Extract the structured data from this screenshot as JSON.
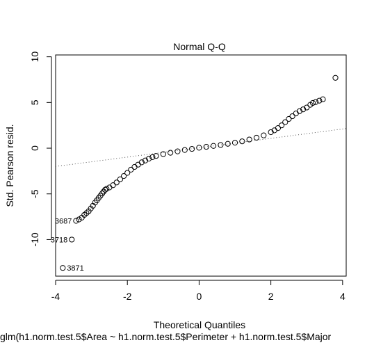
{
  "chart_data": {
    "type": "scatter",
    "title": "Normal Q-Q",
    "xlabel": "Theoretical Quantiles",
    "ylabel": "Std. Pearson resid.",
    "subtitle": "glm(h1.norm.test.5$Area ~ h1.norm.test.5$Perimeter + h1.norm.test.5$Major",
    "xlim": [
      -4.0,
      4.1
    ],
    "ylim": [
      -14.0,
      10.2
    ],
    "x_ticks": [
      -4,
      -2,
      0,
      2,
      4
    ],
    "y_ticks": [
      -10,
      -5,
      0,
      5,
      10
    ],
    "grid": false,
    "reference_line": {
      "style": "dotted",
      "x": [
        -4.0,
        4.1
      ],
      "y": [
        -2.0,
        2.15
      ]
    },
    "series": [
      {
        "marker": "open-circle",
        "points": [
          [
            -3.8,
            -13.1
          ],
          [
            -3.55,
            -10.0
          ],
          [
            -3.43,
            -7.95
          ],
          [
            -3.35,
            -7.8
          ],
          [
            -3.27,
            -7.6
          ],
          [
            -3.2,
            -7.3
          ],
          [
            -3.14,
            -7.1
          ],
          [
            -3.08,
            -6.9
          ],
          [
            -3.02,
            -6.6
          ],
          [
            -2.96,
            -6.3
          ],
          [
            -2.9,
            -5.95
          ],
          [
            -2.85,
            -5.7
          ],
          [
            -2.8,
            -5.45
          ],
          [
            -2.75,
            -5.2
          ],
          [
            -2.7,
            -4.95
          ],
          [
            -2.66,
            -4.75
          ],
          [
            -2.62,
            -4.55
          ],
          [
            -2.58,
            -4.45
          ],
          [
            -2.5,
            -4.3
          ],
          [
            -2.4,
            -4.05
          ],
          [
            -2.3,
            -3.75
          ],
          [
            -2.2,
            -3.4
          ],
          [
            -2.1,
            -3.05
          ],
          [
            -2.0,
            -2.7
          ],
          [
            -1.9,
            -2.35
          ],
          [
            -1.8,
            -2.05
          ],
          [
            -1.7,
            -1.8
          ],
          [
            -1.6,
            -1.55
          ],
          [
            -1.5,
            -1.35
          ],
          [
            -1.4,
            -1.15
          ],
          [
            -1.3,
            -0.98
          ],
          [
            -1.2,
            -0.85
          ],
          [
            -1.0,
            -0.65
          ],
          [
            -0.8,
            -0.5
          ],
          [
            -0.6,
            -0.35
          ],
          [
            -0.4,
            -0.2
          ],
          [
            -0.2,
            -0.08
          ],
          [
            0.0,
            0.05
          ],
          [
            0.2,
            0.15
          ],
          [
            0.4,
            0.25
          ],
          [
            0.6,
            0.35
          ],
          [
            0.8,
            0.48
          ],
          [
            1.0,
            0.6
          ],
          [
            1.2,
            0.75
          ],
          [
            1.4,
            0.95
          ],
          [
            1.6,
            1.15
          ],
          [
            1.8,
            1.4
          ],
          [
            2.0,
            1.75
          ],
          [
            2.1,
            1.95
          ],
          [
            2.2,
            2.2
          ],
          [
            2.3,
            2.5
          ],
          [
            2.4,
            2.85
          ],
          [
            2.5,
            3.2
          ],
          [
            2.6,
            3.5
          ],
          [
            2.7,
            3.8
          ],
          [
            2.8,
            4.05
          ],
          [
            2.9,
            4.25
          ],
          [
            3.0,
            4.45
          ],
          [
            3.1,
            4.75
          ],
          [
            3.17,
            4.95
          ],
          [
            3.25,
            5.05
          ],
          [
            3.35,
            5.2
          ],
          [
            3.45,
            5.35
          ],
          [
            3.8,
            7.7
          ]
        ]
      }
    ],
    "point_labels": [
      {
        "x": -3.43,
        "y": -7.95,
        "text": "3687",
        "side": "left"
      },
      {
        "x": -3.55,
        "y": -10.0,
        "text": "3718",
        "side": "left"
      },
      {
        "x": -3.8,
        "y": -13.1,
        "text": "3871",
        "side": "right"
      }
    ]
  }
}
